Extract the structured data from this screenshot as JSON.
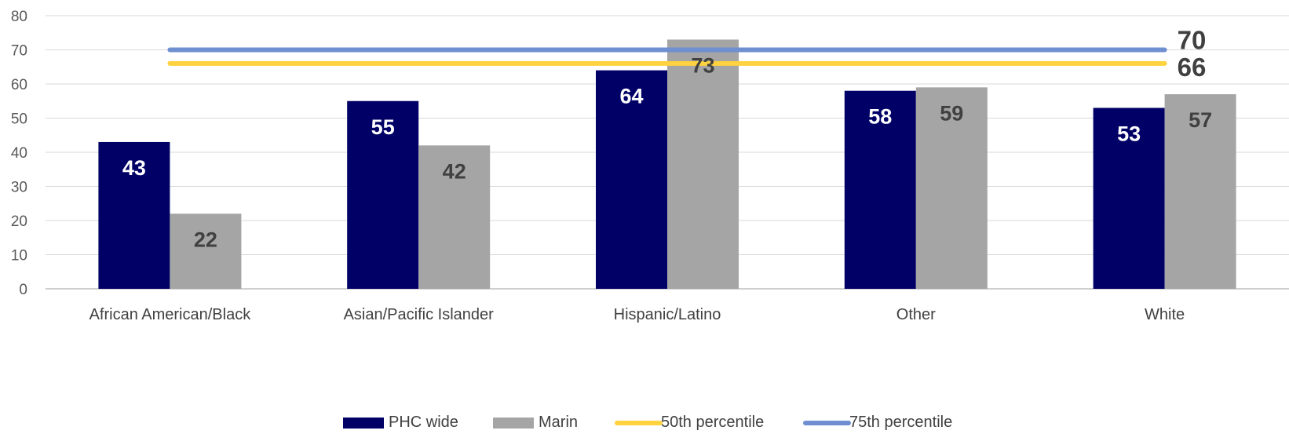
{
  "chart_data": {
    "type": "bar",
    "categories": [
      "African American/Black",
      "Asian/Pacific Islander",
      "Hispanic/Latino",
      "Other",
      "White"
    ],
    "series": [
      {
        "name": "PHC  wide",
        "values": [
          43,
          55,
          64,
          58,
          53
        ]
      },
      {
        "name": "Marin",
        "values": [
          22,
          42,
          73,
          59,
          57
        ]
      }
    ],
    "reference_lines": [
      {
        "name": "50th percentile",
        "value": 66,
        "label": "66"
      },
      {
        "name": "75th percentile",
        "value": 70,
        "label": "70"
      }
    ],
    "yticks": [
      0,
      10,
      20,
      30,
      40,
      50,
      60,
      70,
      80
    ],
    "ylim": [
      0,
      80
    ],
    "title": "",
    "xlabel": "",
    "ylabel": "",
    "grid": true,
    "legend_position": "bottom",
    "colors": {
      "PHC  wide": "#000066",
      "Marin": "#A5A5A5",
      "50th percentile": "#FFD23F",
      "75th percentile": "#6F8FD0",
      "grid": "#D9D9D9",
      "axis": "#BFBFBF"
    }
  }
}
